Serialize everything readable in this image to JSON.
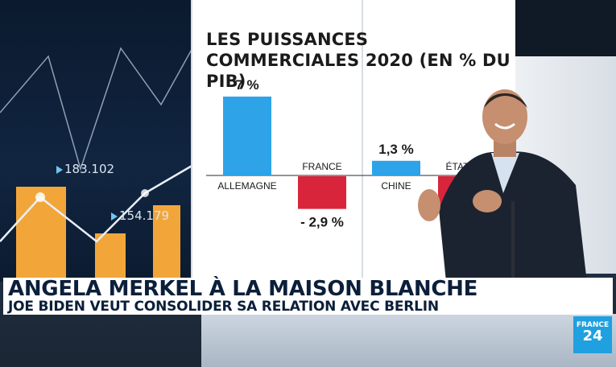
{
  "chart_data": {
    "type": "bar",
    "title": "LES PUISSANCES COMMERCIALES 2020 (EN % DU PIB)",
    "categories": [
      "ALLEMAGNE",
      "FRANCE",
      "CHINE",
      "ÉTATS-"
    ],
    "values": [
      7,
      -2.9,
      1.3,
      -2.9
    ],
    "value_labels": [
      "7 %",
      "- 2,9 %",
      "1,3 %",
      ""
    ],
    "colors": [
      "#2ea3e8",
      "#d9253b",
      "#2ea3e8",
      "#d9253b"
    ],
    "ylim": [
      -5,
      9
    ]
  },
  "background_chart": {
    "values": [
      "183.102",
      "154.179"
    ]
  },
  "banner": {
    "headline": "ANGELA MERKEL À LA MAISON BLANCHE",
    "subline": "JOE BIDEN VEUT CONSOLIDER SA RELATION AVEC BERLIN"
  },
  "logo": {
    "line1": "FRANCE",
    "line2": "24"
  }
}
